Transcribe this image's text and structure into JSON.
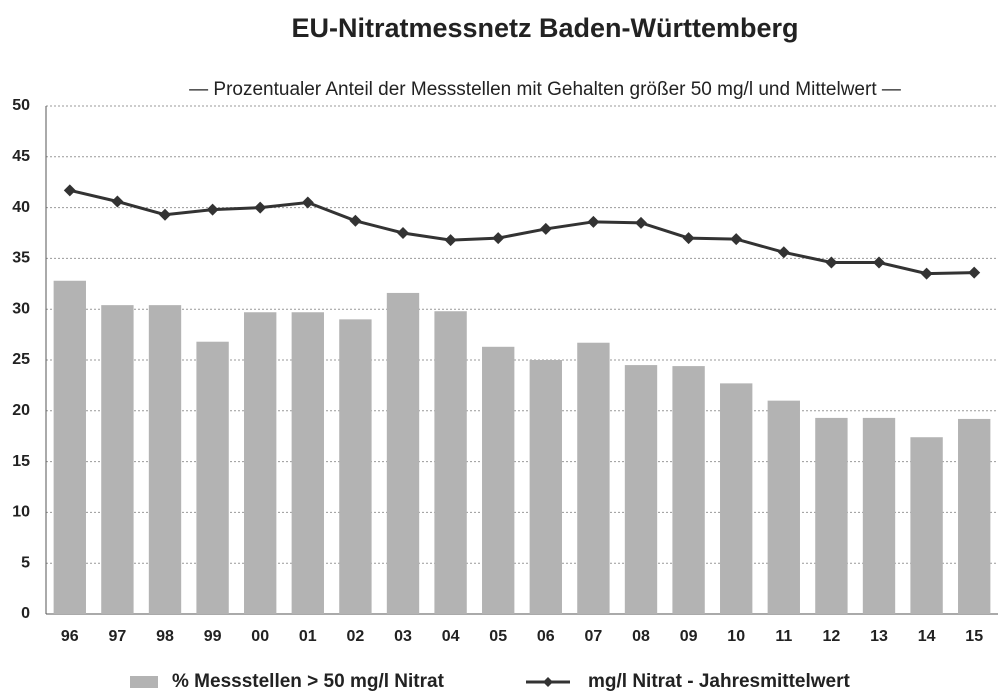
{
  "chart_data": {
    "type": "bar",
    "title": "EU-Nitratmessnetz Baden-Württemberg",
    "subtitle": "— Prozentualer Anteil der Messstellen mit Gehalten größer 50 mg/l und Mittelwert —",
    "categories": [
      "96",
      "97",
      "98",
      "99",
      "00",
      "01",
      "02",
      "03",
      "04",
      "05",
      "06",
      "07",
      "08",
      "09",
      "10",
      "11",
      "12",
      "13",
      "14",
      "15"
    ],
    "series": [
      {
        "name": "% Messstellen > 50 mg/l Nitrat",
        "type": "bar",
        "color": "#b3b3b3",
        "values": [
          32.8,
          30.4,
          30.4,
          26.8,
          29.7,
          29.7,
          29.0,
          31.6,
          29.8,
          26.3,
          25.0,
          26.7,
          24.5,
          24.4,
          22.7,
          21.0,
          19.3,
          19.3,
          17.4,
          19.2
        ]
      },
      {
        "name": "mg/l Nitrat - Jahresmittelwert",
        "type": "line",
        "color": "#333333",
        "values": [
          41.7,
          40.6,
          39.3,
          39.8,
          40.0,
          40.5,
          38.7,
          37.5,
          36.8,
          37.0,
          37.9,
          38.6,
          38.5,
          37.0,
          36.9,
          35.6,
          34.6,
          34.6,
          33.5,
          33.6
        ]
      }
    ],
    "ylim": [
      0,
      50
    ],
    "yticks": [
      0,
      5,
      10,
      15,
      20,
      25,
      30,
      35,
      40,
      45,
      50
    ],
    "grid": true
  }
}
